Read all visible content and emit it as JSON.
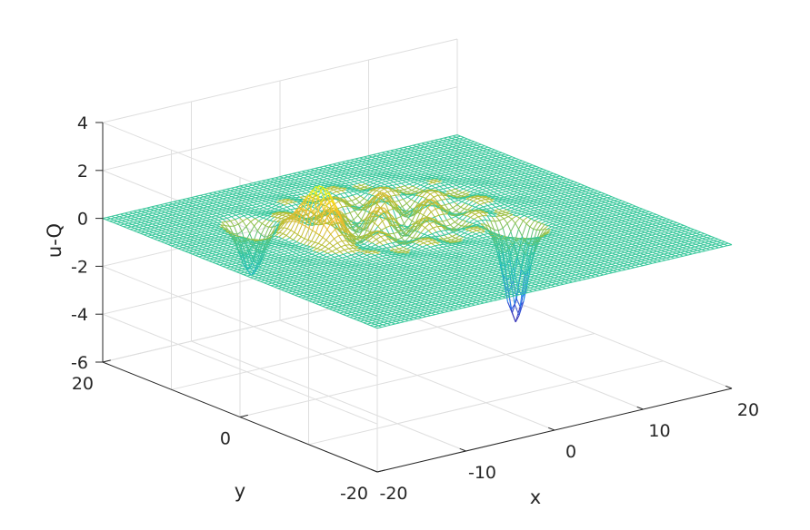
{
  "chart_data": {
    "type": "surface",
    "title": "",
    "xlabel": "x",
    "ylabel": "y",
    "zlabel": "u-Q",
    "xlim": [
      -20,
      20
    ],
    "ylim": [
      -20,
      20
    ],
    "zlim": [
      -6,
      4
    ],
    "x_ticks": [
      "-20",
      "-10",
      "0",
      "10",
      "20"
    ],
    "y_ticks": [
      "-20",
      "0",
      "20"
    ],
    "z_ticks": [
      "4",
      "2",
      "0",
      "-2",
      "-4",
      "-6"
    ],
    "grid": true,
    "colormap": [
      "#3e26a8",
      "#2f6ff0",
      "#1ab2d8",
      "#36c4a0",
      "#a4bf3a",
      "#fdbb2b",
      "#f9fb0e"
    ],
    "baseline_color": "#36c79a",
    "features": [
      {
        "kind": "peak",
        "x": -8,
        "y": 4,
        "z": 2.0
      },
      {
        "kind": "trough",
        "x": -11,
        "y": 10,
        "z": -2.0
      },
      {
        "kind": "trough",
        "x": 8,
        "y": -4,
        "z": -4.0
      },
      {
        "kind": "ripples",
        "x": 0,
        "y": 5,
        "z": 0.8
      }
    ]
  }
}
